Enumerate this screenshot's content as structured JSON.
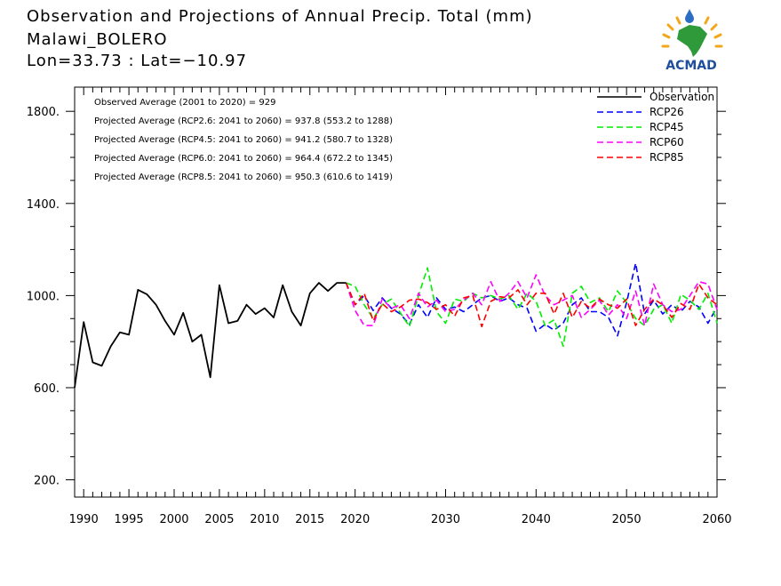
{
  "header": {
    "title_line1": "Observation and Projections of Annual Precip. Total (mm)",
    "title_line2": "Malawi_BOLERO",
    "title_line3": "Lon=33.73 : Lat=−10.97"
  },
  "logo": {
    "text": "ACMAD",
    "color": "#1f4e9c"
  },
  "stats": [
    "Observed Average (2001 to 2020) = 929",
    "Projected Average (RCP2.6: 2041 to 2060) = 937.8 (553.2 to 1288)",
    "Projected Average (RCP4.5: 2041 to 2060) = 941.2 (580.7 to 1328)",
    "Projected Average (RCP6.0: 2041 to 2060) = 964.4 (672.2 to 1345)",
    "Projected Average (RCP8.5: 2041 to 2060) = 950.3 (610.6 to 1419)"
  ],
  "chart_data": {
    "type": "line",
    "xlim": [
      1989,
      2060
    ],
    "ylim": [
      125,
      1905
    ],
    "x_ticks": [
      1990,
      1995,
      2000,
      2005,
      2010,
      2015,
      2020,
      2030,
      2040,
      2050,
      2060
    ],
    "y_ticks": [
      200,
      600,
      1000,
      1400,
      1800
    ],
    "y_tick_labels": [
      "200.",
      "600.",
      "1000.",
      "1400.",
      "1800."
    ],
    "legend_position": "top-right",
    "series": [
      {
        "name": "Observation",
        "color": "#000000",
        "dashed": false,
        "x": [
          1989,
          1990,
          1991,
          1992,
          1993,
          1994,
          1995,
          1996,
          1997,
          1998,
          1999,
          2000,
          2001,
          2002,
          2003,
          2004,
          2005,
          2006,
          2007,
          2008,
          2009,
          2010,
          2011,
          2012,
          2013,
          2014,
          2015,
          2016,
          2017,
          2018,
          2019
        ],
        "y": [
          600,
          885,
          710,
          695,
          780,
          840,
          830,
          1025,
          1005,
          960,
          890,
          830,
          925,
          800,
          830,
          645,
          1045,
          880,
          890,
          960,
          920,
          945,
          905,
          1045,
          930,
          870,
          1010,
          1055,
          1020,
          1055,
          1055
        ]
      },
      {
        "name": "RCP26",
        "color": "#0000ff",
        "dashed": true,
        "x": [
          2019,
          2020,
          2021,
          2022,
          2023,
          2024,
          2025,
          2026,
          2027,
          2028,
          2029,
          2030,
          2031,
          2032,
          2033,
          2034,
          2035,
          2036,
          2037,
          2038,
          2039,
          2040,
          2041,
          2042,
          2043,
          2044,
          2045,
          2046,
          2047,
          2048,
          2049,
          2050,
          2051,
          2052,
          2053,
          2054,
          2055,
          2056,
          2057,
          2058,
          2059,
          2060
        ],
        "y": [
          1055,
          960,
          1000,
          935,
          990,
          945,
          920,
          875,
          960,
          905,
          990,
          940,
          950,
          930,
          960,
          990,
          1000,
          975,
          990,
          960,
          945,
          845,
          875,
          850,
          880,
          960,
          990,
          930,
          930,
          905,
          825,
          970,
          1140,
          920,
          980,
          920,
          960,
          930,
          975,
          950,
          880,
          950
        ]
      },
      {
        "name": "RCP45",
        "color": "#00ee00",
        "dashed": true,
        "x": [
          2019,
          2020,
          2021,
          2022,
          2023,
          2024,
          2025,
          2026,
          2027,
          2028,
          2029,
          2030,
          2031,
          2032,
          2033,
          2034,
          2035,
          2036,
          2037,
          2038,
          2039,
          2040,
          2041,
          2042,
          2043,
          2044,
          2045,
          2046,
          2047,
          2048,
          2049,
          2050,
          2051,
          2052,
          2053,
          2054,
          2055,
          2056,
          2057,
          2058,
          2059,
          2060
        ],
        "y": [
          1055,
          1040,
          960,
          900,
          960,
          985,
          925,
          865,
          1000,
          1120,
          930,
          880,
          985,
          975,
          1010,
          990,
          1000,
          985,
          1000,
          940,
          1010,
          975,
          870,
          895,
          780,
          1010,
          1040,
          970,
          990,
          930,
          1020,
          970,
          900,
          870,
          940,
          960,
          880,
          1005,
          980,
          940,
          1010,
          880
        ]
      },
      {
        "name": "RCP60",
        "color": "#ff00ff",
        "dashed": true,
        "x": [
          2019,
          2020,
          2021,
          2022,
          2023,
          2024,
          2025,
          2026,
          2027,
          2028,
          2029,
          2030,
          2031,
          2032,
          2033,
          2034,
          2035,
          2036,
          2037,
          2038,
          2039,
          2040,
          2041,
          2042,
          2043,
          2044,
          2045,
          2046,
          2047,
          2048,
          2049,
          2050,
          2051,
          2052,
          2053,
          2054,
          2055,
          2056,
          2057,
          2058,
          2059,
          2060
        ],
        "y": [
          1055,
          935,
          870,
          870,
          985,
          945,
          960,
          900,
          1010,
          950,
          980,
          930,
          940,
          980,
          1010,
          960,
          1060,
          975,
          1010,
          1060,
          990,
          1090,
          1000,
          960,
          980,
          1000,
          905,
          940,
          980,
          915,
          960,
          900,
          1020,
          870,
          1050,
          960,
          930,
          940,
          1000,
          1060,
          1050,
          940
        ]
      },
      {
        "name": "RCP85",
        "color": "#ff0000",
        "dashed": true,
        "x": [
          2019,
          2020,
          2021,
          2022,
          2023,
          2024,
          2025,
          2026,
          2027,
          2028,
          2029,
          2030,
          2031,
          2032,
          2033,
          2034,
          2035,
          2036,
          2037,
          2038,
          2039,
          2040,
          2041,
          2042,
          2043,
          2044,
          2045,
          2046,
          2047,
          2048,
          2049,
          2050,
          2051,
          2052,
          2053,
          2054,
          2055,
          2056,
          2057,
          2058,
          2059,
          2060
        ],
        "y": [
          1055,
          960,
          1010,
          890,
          965,
          930,
          950,
          980,
          985,
          970,
          940,
          960,
          910,
          990,
          1000,
          865,
          975,
          995,
          990,
          1025,
          960,
          1010,
          1010,
          920,
          1010,
          905,
          975,
          945,
          985,
          960,
          945,
          985,
          870,
          940,
          985,
          960,
          905,
          965,
          940,
          1050,
          990,
          960
        ]
      }
    ]
  }
}
